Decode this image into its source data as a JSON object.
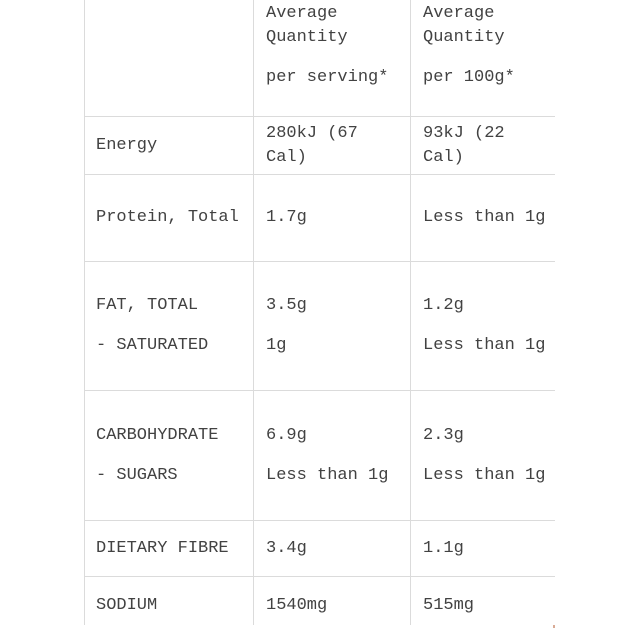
{
  "colors": {
    "text": "#424242",
    "border": "#dbdbdb",
    "background": "#ffffff"
  },
  "table": {
    "header": {
      "cells": [
        {
          "lines": []
        },
        {
          "lines": [
            "Average Quantity",
            "per serving*"
          ]
        },
        {
          "lines": [
            "Average Quantity",
            "per 100g*"
          ]
        }
      ]
    },
    "rows": [
      {
        "cells": [
          {
            "lines": [
              "Energy"
            ]
          },
          {
            "lines": [
              "280kJ (67 Cal)"
            ]
          },
          {
            "lines": [
              "93kJ (22 Cal)"
            ]
          }
        ]
      },
      {
        "cells": [
          {
            "lines": [
              "Protein, Total"
            ]
          },
          {
            "lines": [
              "1.7g"
            ]
          },
          {
            "lines": [
              "Less than 1g"
            ]
          }
        ]
      },
      {
        "cells": [
          {
            "lines": [
              "FAT, TOTAL",
              "- SATURATED"
            ]
          },
          {
            "lines": [
              "3.5g",
              "1g"
            ]
          },
          {
            "lines": [
              "1.2g",
              "Less than 1g"
            ]
          }
        ]
      },
      {
        "cells": [
          {
            "lines": [
              "CARBOHYDRATE",
              "- SUGARS"
            ]
          },
          {
            "lines": [
              "6.9g",
              "Less than 1g"
            ]
          },
          {
            "lines": [
              "2.3g",
              "Less than 1g"
            ]
          }
        ]
      },
      {
        "cells": [
          {
            "lines": [
              "DIETARY FIBRE"
            ]
          },
          {
            "lines": [
              "3.4g"
            ]
          },
          {
            "lines": [
              "1.1g"
            ]
          }
        ]
      },
      {
        "cells": [
          {
            "lines": [
              "SODIUM"
            ]
          },
          {
            "lines": [
              "1540mg"
            ]
          },
          {
            "lines": [
              "515mg"
            ]
          }
        ]
      }
    ]
  }
}
